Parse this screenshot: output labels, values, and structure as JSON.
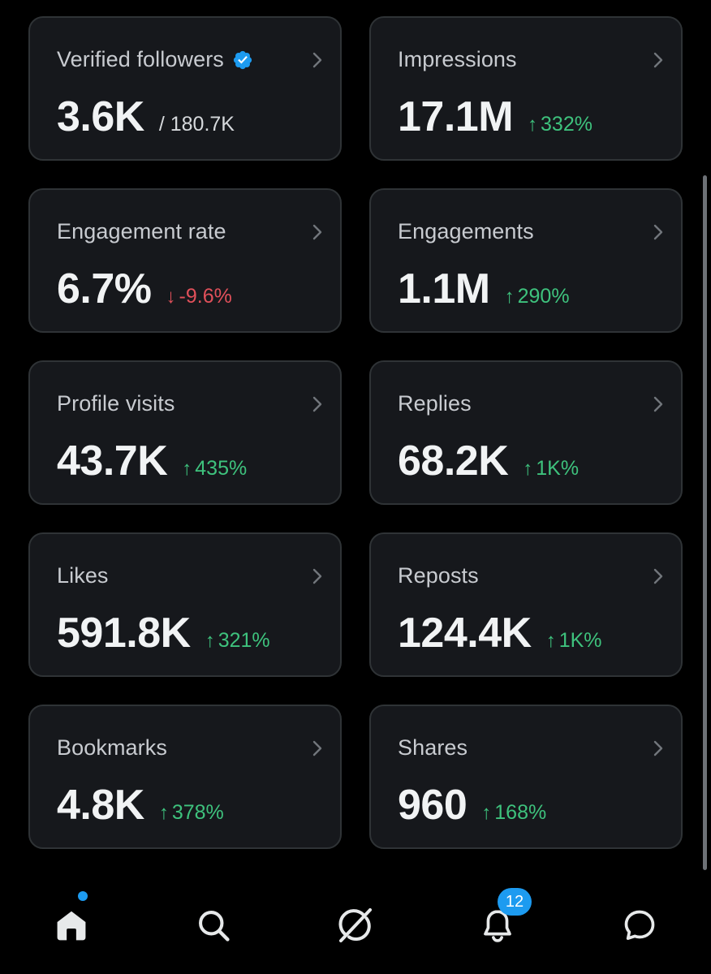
{
  "colors": {
    "card_bg": "#16181c",
    "card_border": "#2f3336",
    "positive": "#3ec27d",
    "negative": "#e0505a",
    "accent": "#1d9bf0"
  },
  "cards": [
    {
      "title": "Verified followers",
      "value": "3.6K",
      "sub": "/ 180.7K",
      "verified": true,
      "delta": "",
      "direction": ""
    },
    {
      "title": "Impressions",
      "value": "17.1M",
      "delta": "332%",
      "direction": "up"
    },
    {
      "title": "Engagement rate",
      "value": "6.7%",
      "delta": "-9.6%",
      "direction": "down"
    },
    {
      "title": "Engagements",
      "value": "1.1M",
      "delta": "290%",
      "direction": "up"
    },
    {
      "title": "Profile visits",
      "value": "43.7K",
      "delta": "435%",
      "direction": "up"
    },
    {
      "title": "Replies",
      "value": "68.2K",
      "delta": "1K%",
      "direction": "up"
    },
    {
      "title": "Likes",
      "value": "591.8K",
      "delta": "321%",
      "direction": "up"
    },
    {
      "title": "Reposts",
      "value": "124.4K",
      "delta": "1K%",
      "direction": "up"
    },
    {
      "title": "Bookmarks",
      "value": "4.8K",
      "delta": "378%",
      "direction": "up"
    },
    {
      "title": "Shares",
      "value": "960",
      "delta": "168%",
      "direction": "up"
    }
  ],
  "arrows": {
    "up": "↑",
    "down": "↓"
  },
  "tabbar": {
    "items": [
      {
        "name": "home",
        "icon": "home-icon"
      },
      {
        "name": "search",
        "icon": "search-icon"
      },
      {
        "name": "grok",
        "icon": "grok-icon"
      },
      {
        "name": "notifications",
        "icon": "bell-icon",
        "badge": "12"
      },
      {
        "name": "messages",
        "icon": "chat-bubble-icon"
      }
    ]
  }
}
